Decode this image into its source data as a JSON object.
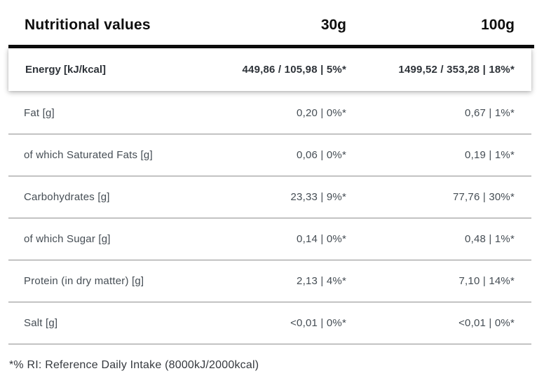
{
  "table": {
    "header": {
      "title": "Nutritional values",
      "serving_col": "30g",
      "per100_col": "100g"
    },
    "energy_row": {
      "label": "Energy [kJ/kcal]",
      "value_30g": "449,86 / 105,98 | 5%*",
      "value_100g": "1499,52 / 353,28 | 18%*"
    },
    "rows": [
      {
        "label": "Fat [g]",
        "value_30g": "0,20 | 0%*",
        "value_100g": "0,67 | 1%*"
      },
      {
        "label": "of which Saturated Fats [g]",
        "value_30g": "0,06 | 0%*",
        "value_100g": "0,19 | 1%*"
      },
      {
        "label": "Carbohydrates [g]",
        "value_30g": "23,33 | 9%*",
        "value_100g": "77,76 | 30%*"
      },
      {
        "label": "of which Sugar [g]",
        "value_30g": "0,14 | 0%*",
        "value_100g": "0,48 | 1%*"
      },
      {
        "label": "Protein (in dry matter) [g]",
        "value_30g": "2,13 | 4%*",
        "value_100g": "7,10 | 14%*"
      },
      {
        "label": "Salt [g]",
        "value_30g": "<0,01 | 0%*",
        "value_100g": "<0,01 | 0%*"
      }
    ],
    "footnote": "*% RI: Reference Daily Intake (8000kJ/2000kcal)"
  },
  "colors": {
    "header_text": "#0e0e0e",
    "thick_bar": "#0d0d0d",
    "row_text": "#454d54",
    "energy_text": "#2e3339",
    "divider": "#8d8d8d",
    "background": "#ffffff"
  }
}
